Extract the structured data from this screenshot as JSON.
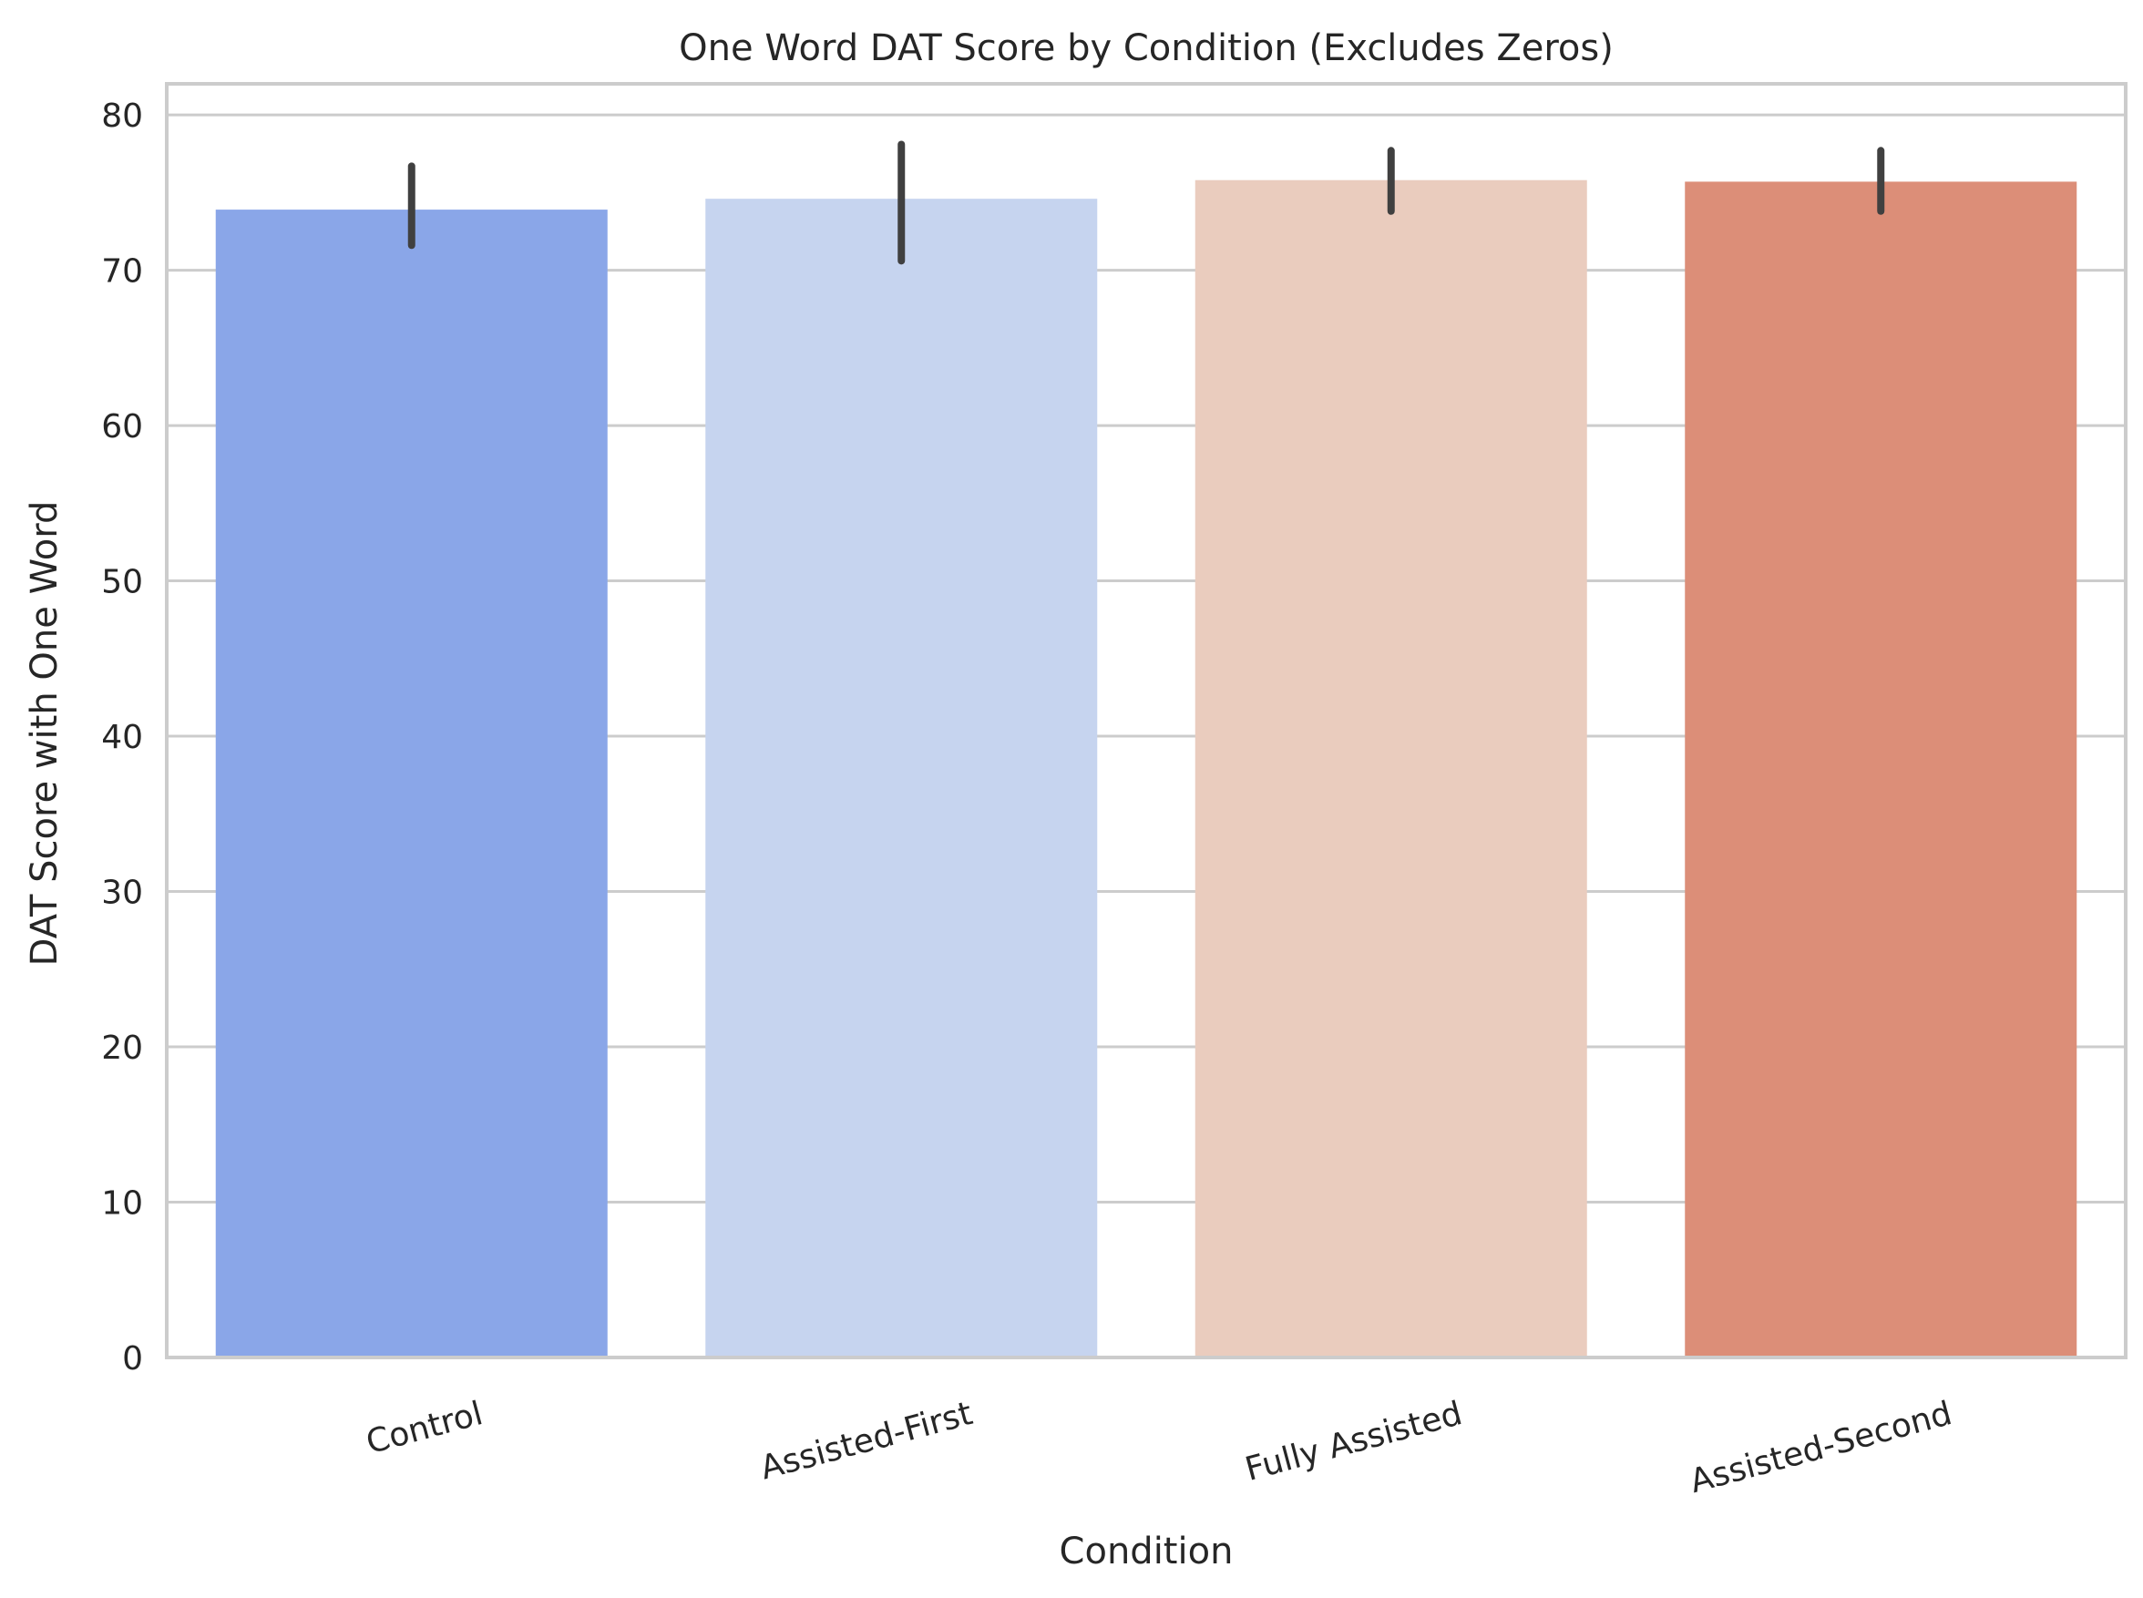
{
  "chart_data": {
    "type": "bar",
    "title": "One Word DAT Score by Condition (Excludes Zeros)",
    "xlabel": "Condition",
    "ylabel": "DAT Score with One Word",
    "categories": [
      "Control",
      "Assisted-First",
      "Fully Assisted",
      "Assisted-Second"
    ],
    "values": [
      73.9,
      74.6,
      75.8,
      75.7
    ],
    "error_low": [
      71.6,
      70.6,
      73.8,
      73.8
    ],
    "error_high": [
      76.7,
      78.1,
      77.7,
      77.7
    ],
    "colors": [
      "#8aa6e8",
      "#c6d4ef",
      "#eaccbe",
      "#dc8e78"
    ],
    "ylim": [
      0,
      82
    ],
    "yticks": [
      0,
      10,
      20,
      30,
      40,
      50,
      60,
      70,
      80
    ],
    "grid": "horizontal",
    "legend": "none"
  }
}
